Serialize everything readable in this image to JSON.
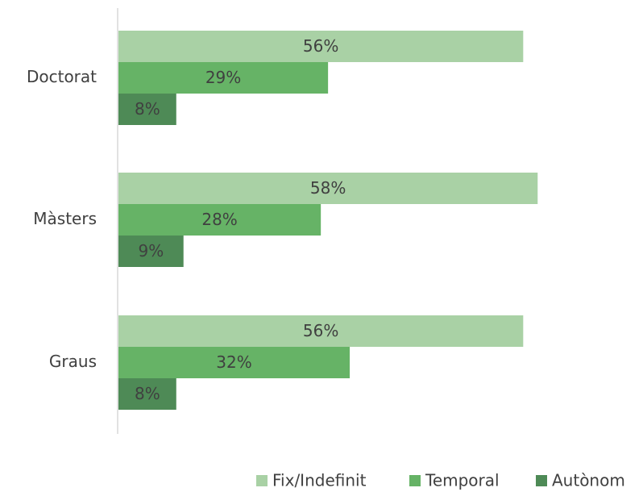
{
  "chart_data": {
    "type": "bar",
    "orientation": "horizontal",
    "categories": [
      "Doctorat",
      "Màsters",
      "Graus"
    ],
    "series": [
      {
        "name": "Fix/Indefinit",
        "values": [
          56,
          58,
          56
        ],
        "labels": [
          "56%",
          "58%",
          "56%"
        ],
        "color": "#a9d1a5"
      },
      {
        "name": "Temporal",
        "values": [
          29,
          28,
          32
        ],
        "labels": [
          "29%",
          "28%",
          "32%"
        ],
        "color": "#66b366"
      },
      {
        "name": "Autònom",
        "values": [
          8,
          9,
          8
        ],
        "labels": [
          "8%",
          "9%",
          "8%"
        ],
        "color": "#4e8a56"
      }
    ],
    "xlim": [
      0,
      100
    ],
    "grid": false,
    "legend_position": "bottom-right",
    "title": "",
    "xlabel": "",
    "ylabel": ""
  }
}
